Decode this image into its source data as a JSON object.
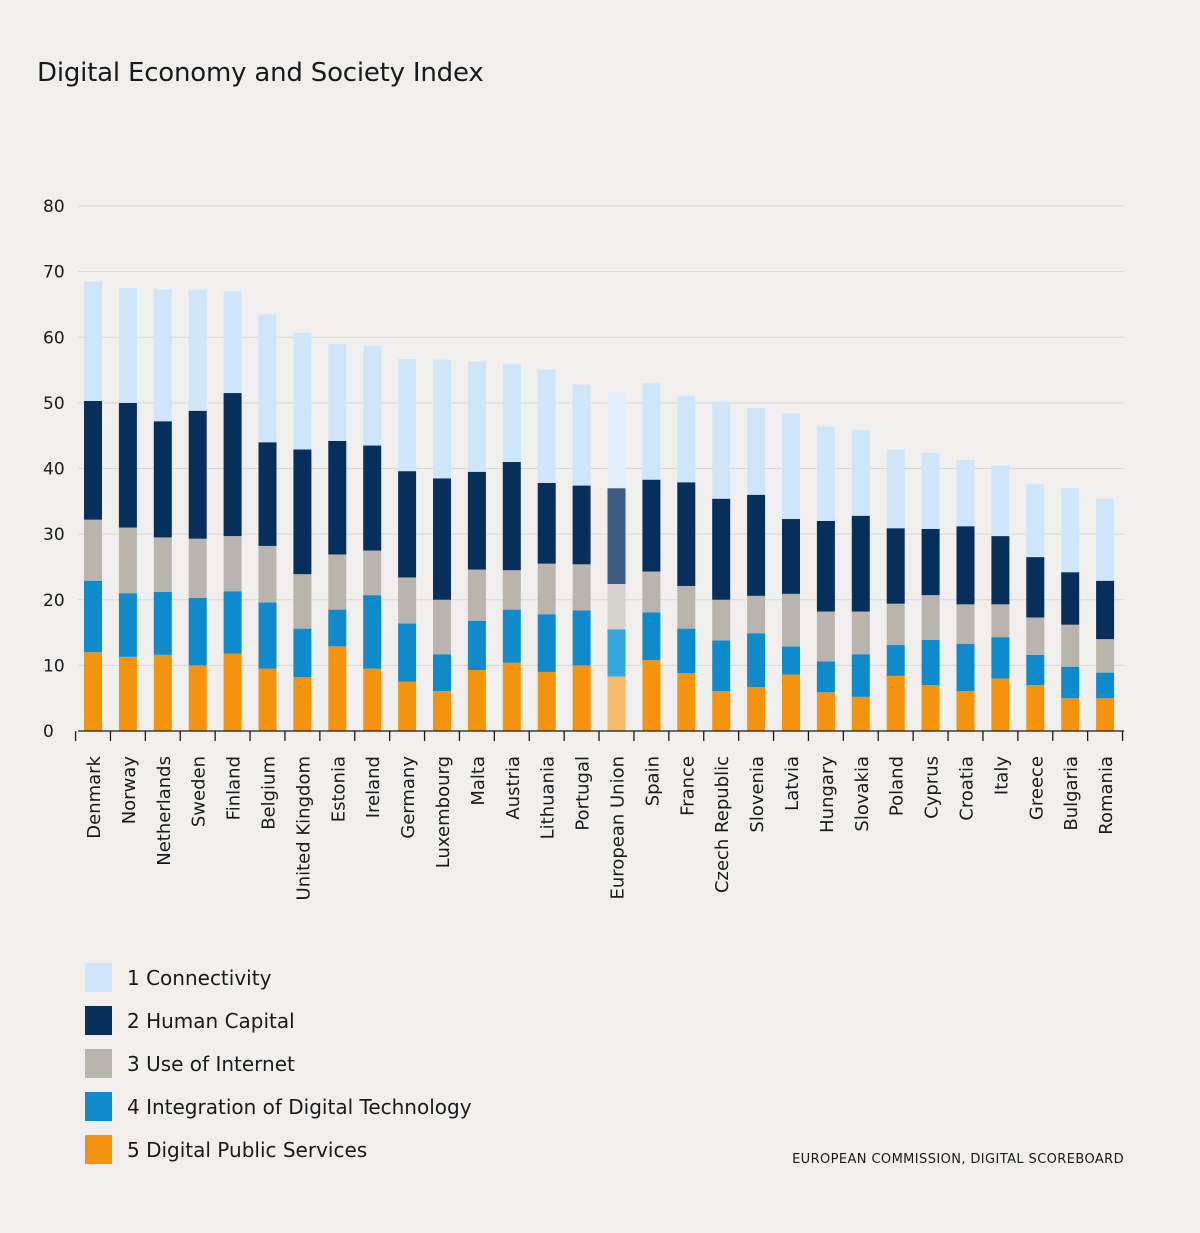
{
  "colors": {
    "connectivity": "#cfe6fa",
    "human_capital": "#062f5c",
    "use_of_internet": "#b9b4ad",
    "integration": "#0f8bcc",
    "public_services": "#f4930e",
    "eu_connectivity": "#e2effa",
    "eu_human_capital": "#3e5d86",
    "eu_use_of_internet": "#d5d1cc",
    "eu_integration": "#36a7dc",
    "eu_public_services": "#f7b96a",
    "grid": "#d9d7d3",
    "axis": "#1a1a1a"
  },
  "source": "EUROPEAN COMMISSION, DIGITAL SCOREBOARD",
  "chart_data": {
    "type": "bar",
    "stacked": true,
    "title": "Digital Economy and Society Index",
    "xlabel": "",
    "ylabel": "",
    "ylim": [
      0,
      80
    ],
    "yticks": [
      "0",
      "10",
      "20",
      "30",
      "40",
      "50",
      "60",
      "70",
      "80"
    ],
    "grid": true,
    "legend_position": "bottom-left",
    "highlight_category": "European Union",
    "categories": [
      "Denmark",
      "Norway",
      "Netherlands",
      "Sweden",
      "Finland",
      "Belgium",
      "United Kingdom",
      "Estonia",
      "Ireland",
      "Germany",
      "Luxembourg",
      "Malta",
      "Austria",
      "Lithuania",
      "Portugal",
      "European Union",
      "Spain",
      "France",
      "Czech Republic",
      "Slovenia",
      "Latvia",
      "Hungary",
      "Slovakia",
      "Poland",
      "Cyprus",
      "Croatia",
      "Italy",
      "Greece",
      "Bulgaria",
      "Romania"
    ],
    "series": [
      {
        "name": "5 Digital Public Services",
        "color_key": "public_services",
        "values": [
          12.0,
          11.3,
          11.6,
          10.0,
          11.8,
          9.5,
          8.2,
          12.9,
          9.5,
          7.5,
          6.1,
          9.3,
          10.4,
          9.0,
          10.0,
          8.3,
          10.8,
          8.8,
          6.1,
          6.7,
          8.6,
          5.9,
          5.2,
          8.4,
          7.0,
          6.1,
          8.0,
          7.0,
          5.0,
          5.0
        ]
      },
      {
        "name": "4 Integration of Digital Technology",
        "color_key": "integration",
        "values": [
          10.9,
          9.7,
          9.6,
          10.3,
          9.5,
          10.1,
          7.4,
          5.6,
          11.2,
          8.9,
          5.6,
          7.5,
          8.1,
          8.8,
          8.4,
          7.2,
          7.3,
          6.8,
          7.7,
          8.2,
          4.3,
          4.7,
          6.5,
          4.7,
          6.9,
          7.2,
          6.3,
          4.6,
          4.8,
          3.9
        ]
      },
      {
        "name": "3 Use of Internet",
        "color_key": "use_of_internet",
        "values": [
          9.3,
          10.0,
          8.3,
          9.0,
          8.4,
          8.6,
          8.3,
          8.4,
          6.8,
          7.0,
          8.3,
          7.8,
          6.0,
          7.7,
          7.0,
          6.9,
          6.2,
          6.5,
          6.2,
          5.7,
          8.0,
          7.6,
          6.5,
          6.3,
          6.8,
          6.0,
          5.0,
          5.7,
          6.4,
          5.1
        ]
      },
      {
        "name": "2 Human Capital",
        "color_key": "human_capital",
        "values": [
          18.1,
          19.0,
          17.7,
          19.5,
          21.8,
          15.8,
          19.0,
          17.3,
          16.0,
          16.2,
          18.5,
          14.9,
          16.5,
          12.3,
          12.0,
          14.6,
          14.0,
          15.8,
          15.4,
          15.4,
          11.4,
          13.8,
          14.6,
          11.5,
          10.1,
          11.9,
          10.4,
          9.2,
          8.0,
          8.9
        ]
      },
      {
        "name": "1 Connectivity",
        "color_key": "connectivity",
        "values": [
          18.2,
          17.5,
          20.1,
          18.4,
          15.5,
          19.5,
          17.8,
          14.8,
          15.2,
          17.1,
          18.1,
          16.8,
          14.9,
          17.3,
          15.4,
          14.6,
          14.7,
          13.2,
          14.8,
          13.2,
          16.1,
          14.4,
          13.1,
          12.0,
          11.6,
          10.1,
          10.8,
          11.1,
          12.8,
          12.5
        ]
      }
    ]
  },
  "legend": [
    {
      "label": "1 Connectivity",
      "color_key": "connectivity"
    },
    {
      "label": "2 Human Capital",
      "color_key": "human_capital"
    },
    {
      "label": "3 Use of Internet",
      "color_key": "use_of_internet"
    },
    {
      "label": "4 Integration of Digital Technology",
      "color_key": "integration"
    },
    {
      "label": "5 Digital Public Services",
      "color_key": "public_services"
    }
  ]
}
